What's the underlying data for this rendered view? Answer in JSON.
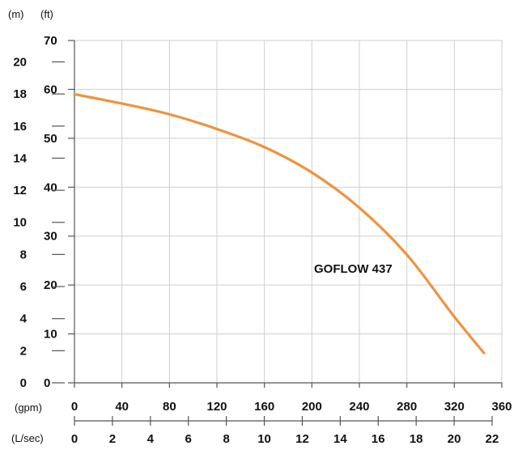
{
  "chart_data": {
    "type": "line",
    "unit_labels": {
      "m": "(m)",
      "ft": "(ft)",
      "gpm": "(gpm)",
      "lsec": "(L/sec)"
    },
    "ft_axis": {
      "range": [
        0,
        70
      ],
      "ticks": [
        "0",
        "10",
        "20",
        "30",
        "40",
        "50",
        "60",
        "70"
      ]
    },
    "m_axis": {
      "range": [
        0,
        21.336
      ],
      "ticks": [
        "0",
        "2",
        "4",
        "6",
        "8",
        "10",
        "12",
        "14",
        "16",
        "18",
        "20"
      ]
    },
    "gpm_axis": {
      "range": [
        0,
        360
      ],
      "ticks": [
        "0",
        "40",
        "80",
        "120",
        "160",
        "200",
        "240",
        "280",
        "320",
        "360"
      ]
    },
    "lsec_axis": {
      "ticks": [
        "0",
        "2",
        "4",
        "6",
        "8",
        "10",
        "12",
        "14",
        "16",
        "18",
        "20",
        "22"
      ]
    },
    "grid": true,
    "series": [
      {
        "name": "GOFLOW 437",
        "color": "#F0923E",
        "x": [
          0,
          40,
          80,
          120,
          160,
          200,
          240,
          280,
          320,
          345
        ],
        "y": [
          59,
          57.1,
          54.9,
          51.9,
          48.2,
          43,
          35.8,
          26.2,
          13.5,
          6.1
        ]
      }
    ]
  }
}
